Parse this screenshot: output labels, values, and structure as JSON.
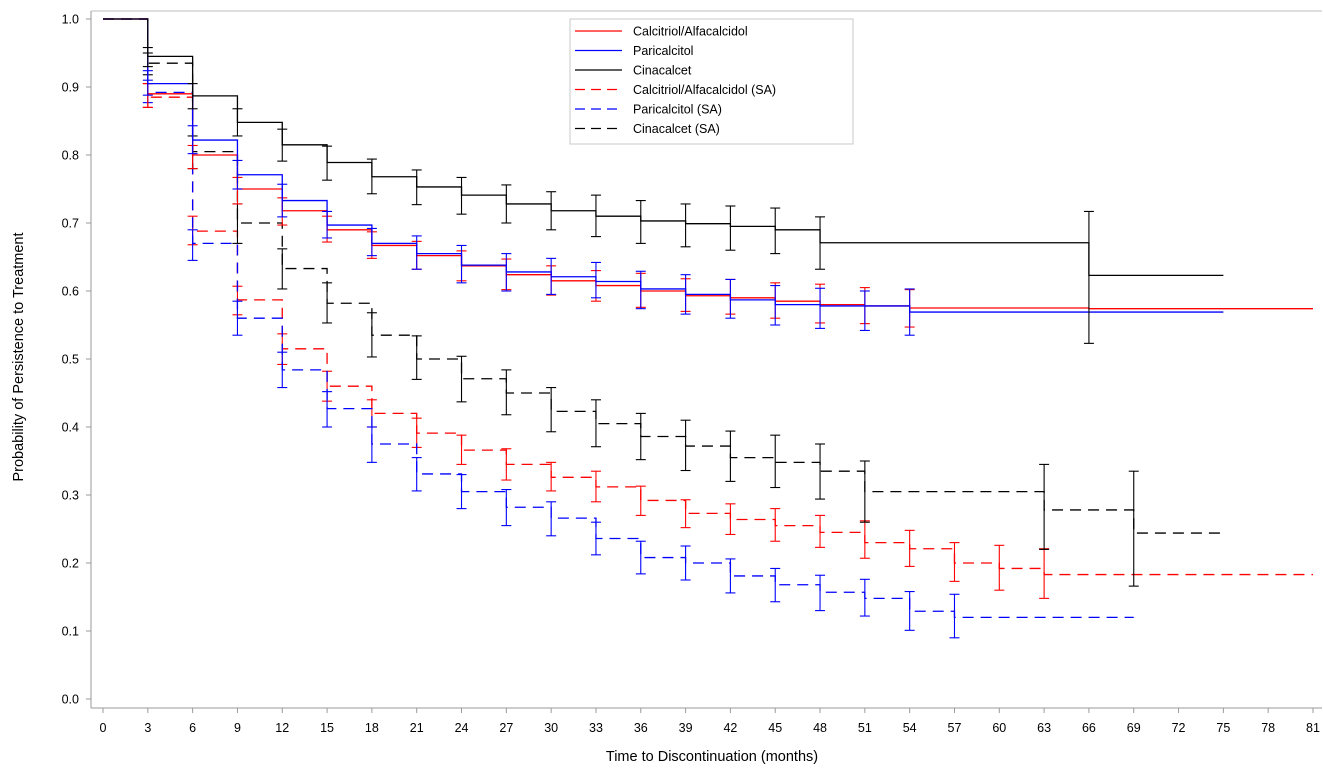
{
  "chart_data": {
    "type": "line",
    "subtype": "kaplan-meier-step",
    "xlabel": "Time to Discontinuation (months)",
    "ylabel": "Probability of Persistence to Treatment",
    "xlim": [
      0,
      81
    ],
    "ylim": [
      0.0,
      1.0
    ],
    "xticks": [
      0,
      3,
      6,
      9,
      12,
      15,
      18,
      21,
      24,
      27,
      30,
      33,
      36,
      39,
      42,
      45,
      48,
      51,
      54,
      57,
      60,
      63,
      66,
      69,
      72,
      75,
      78,
      81
    ],
    "xtick_labels": [
      "0",
      "3",
      "6",
      "9",
      "12",
      "15",
      "18",
      "21",
      "24",
      "27",
      "30",
      "33",
      "36",
      "39",
      "42",
      "45",
      "48",
      "51",
      "54",
      "57",
      "60",
      "63",
      "66",
      "69",
      "72",
      "75",
      "78",
      "81"
    ],
    "yticks": [
      0.0,
      0.1,
      0.2,
      0.3,
      0.4,
      0.5,
      0.6,
      0.7,
      0.8,
      0.9,
      1.0
    ],
    "ytick_labels": [
      "0.0",
      "0.1",
      "0.2",
      "0.3",
      "0.4",
      "0.5",
      "0.6",
      "0.7",
      "0.8",
      "0.9",
      "1.0"
    ],
    "grid": false,
    "legend_position": "top-center",
    "series": [
      {
        "name": "Calcitriol/Alfacalcidol",
        "color": "#ff0000",
        "dash": "solid",
        "x": [
          0,
          3,
          6,
          9,
          12,
          15,
          18,
          21,
          24,
          27,
          30,
          33,
          36,
          39,
          42,
          45,
          48,
          51,
          54,
          57,
          60,
          63,
          66,
          69,
          72,
          75,
          78,
          81
        ],
        "y": [
          1.0,
          0.89,
          0.8,
          0.75,
          0.718,
          0.69,
          0.667,
          0.652,
          0.637,
          0.624,
          0.615,
          0.608,
          0.6,
          0.593,
          0.59,
          0.585,
          0.58,
          0.578,
          0.575,
          0.575,
          0.575,
          0.575,
          0.574,
          0.574,
          0.574,
          0.574,
          0.574,
          0.574
        ],
        "ci_at": [
          3,
          6,
          9,
          12,
          15,
          18,
          21,
          24,
          27,
          30,
          33,
          36,
          39,
          42,
          45,
          48,
          51,
          54
        ],
        "ci_low": [
          0.87,
          0.78,
          0.728,
          0.697,
          0.672,
          0.648,
          0.632,
          0.615,
          0.602,
          0.594,
          0.585,
          0.576,
          0.57,
          0.566,
          0.56,
          0.553,
          0.552,
          0.547
        ],
        "ci_high": [
          0.905,
          0.814,
          0.767,
          0.737,
          0.71,
          0.687,
          0.673,
          0.659,
          0.647,
          0.637,
          0.63,
          0.626,
          0.618,
          0.617,
          0.612,
          0.61,
          0.605,
          0.602
        ]
      },
      {
        "name": "Paricalcitol",
        "color": "#0000ff",
        "dash": "solid",
        "x": [
          0,
          3,
          6,
          9,
          12,
          15,
          18,
          21,
          24,
          27,
          30,
          33,
          36,
          39,
          42,
          45,
          48,
          51,
          54,
          57,
          60,
          63,
          66,
          69,
          72,
          75
        ],
        "y": [
          1.0,
          0.905,
          0.822,
          0.771,
          0.733,
          0.697,
          0.67,
          0.655,
          0.638,
          0.628,
          0.621,
          0.614,
          0.603,
          0.595,
          0.587,
          0.58,
          0.578,
          0.578,
          0.569,
          0.569,
          0.569,
          0.569,
          0.569,
          0.569,
          0.569,
          0.569
        ],
        "ci_at": [
          3,
          6,
          9,
          12,
          15,
          18,
          21,
          24,
          27,
          30,
          33,
          36,
          39,
          42,
          45,
          48,
          51,
          54
        ],
        "ci_low": [
          0.888,
          0.802,
          0.75,
          0.709,
          0.678,
          0.652,
          0.632,
          0.612,
          0.6,
          0.595,
          0.59,
          0.574,
          0.566,
          0.56,
          0.55,
          0.545,
          0.542,
          0.535
        ],
        "ci_high": [
          0.924,
          0.843,
          0.792,
          0.757,
          0.717,
          0.692,
          0.681,
          0.667,
          0.655,
          0.648,
          0.642,
          0.629,
          0.624,
          0.617,
          0.608,
          0.604,
          0.6,
          0.603
        ]
      },
      {
        "name": "Cinacalcet",
        "color": "#000000",
        "dash": "solid",
        "x": [
          0,
          3,
          6,
          9,
          12,
          15,
          18,
          21,
          24,
          27,
          30,
          33,
          36,
          39,
          42,
          45,
          48,
          51,
          54,
          57,
          60,
          63,
          66,
          69,
          72,
          75
        ],
        "y": [
          1.0,
          0.945,
          0.887,
          0.848,
          0.815,
          0.789,
          0.768,
          0.753,
          0.741,
          0.728,
          0.718,
          0.71,
          0.703,
          0.699,
          0.695,
          0.69,
          0.671,
          0.671,
          0.671,
          0.671,
          0.671,
          0.671,
          0.623,
          0.623,
          0.623,
          0.623
        ],
        "ci_at": [
          3,
          6,
          9,
          12,
          15,
          18,
          21,
          24,
          27,
          30,
          33,
          36,
          39,
          42,
          45,
          48,
          66
        ],
        "ci_low": [
          0.93,
          0.868,
          0.828,
          0.791,
          0.763,
          0.743,
          0.727,
          0.713,
          0.7,
          0.69,
          0.68,
          0.67,
          0.665,
          0.66,
          0.655,
          0.632,
          0.523
        ],
        "ci_high": [
          0.958,
          0.905,
          0.868,
          0.838,
          0.813,
          0.794,
          0.778,
          0.767,
          0.756,
          0.746,
          0.741,
          0.733,
          0.728,
          0.725,
          0.722,
          0.709,
          0.717
        ]
      },
      {
        "name": "Calcitriol/Alfacalcidol (SA)",
        "color": "#ff0000",
        "dash": "dashed",
        "x": [
          0,
          3,
          6,
          9,
          12,
          15,
          18,
          21,
          24,
          27,
          30,
          33,
          36,
          39,
          42,
          45,
          48,
          51,
          54,
          57,
          60,
          63,
          66,
          69,
          72,
          75,
          78,
          81
        ],
        "y": [
          1.0,
          0.885,
          0.688,
          0.587,
          0.515,
          0.46,
          0.42,
          0.391,
          0.366,
          0.345,
          0.326,
          0.312,
          0.292,
          0.273,
          0.264,
          0.255,
          0.245,
          0.23,
          0.221,
          0.2,
          0.192,
          0.183,
          0.183,
          0.183,
          0.183,
          0.183,
          0.183,
          0.183
        ],
        "ci_at": [
          3,
          6,
          9,
          12,
          15,
          18,
          21,
          24,
          27,
          30,
          33,
          36,
          39,
          42,
          45,
          48,
          51,
          54,
          57,
          60,
          63
        ],
        "ci_low": [
          0.87,
          0.668,
          0.565,
          0.492,
          0.438,
          0.4,
          0.37,
          0.345,
          0.322,
          0.306,
          0.29,
          0.27,
          0.252,
          0.242,
          0.232,
          0.223,
          0.207,
          0.195,
          0.173,
          0.16,
          0.148
        ],
        "ci_high": [
          0.905,
          0.71,
          0.607,
          0.537,
          0.482,
          0.44,
          0.413,
          0.388,
          0.368,
          0.348,
          0.335,
          0.313,
          0.293,
          0.287,
          0.28,
          0.27,
          0.262,
          0.248,
          0.23,
          0.226,
          0.221
        ]
      },
      {
        "name": "Paricalcitol (SA)",
        "color": "#0000ff",
        "dash": "dashed",
        "x": [
          0,
          3,
          6,
          9,
          12,
          15,
          18,
          21,
          24,
          27,
          30,
          33,
          36,
          39,
          42,
          45,
          48,
          51,
          54,
          57,
          60,
          63,
          66,
          69
        ],
        "y": [
          1.0,
          0.892,
          0.67,
          0.56,
          0.484,
          0.427,
          0.375,
          0.331,
          0.305,
          0.282,
          0.266,
          0.236,
          0.208,
          0.2,
          0.181,
          0.168,
          0.157,
          0.148,
          0.129,
          0.12,
          0.12,
          0.12,
          0.12,
          0.12
        ],
        "ci_at": [
          3,
          6,
          9,
          12,
          15,
          18,
          21,
          24,
          27,
          30,
          33,
          36,
          39,
          42,
          45,
          48,
          51,
          54,
          57
        ],
        "ci_low": [
          0.877,
          0.645,
          0.535,
          0.458,
          0.4,
          0.348,
          0.306,
          0.28,
          0.255,
          0.24,
          0.212,
          0.184,
          0.175,
          0.156,
          0.143,
          0.13,
          0.122,
          0.101,
          0.09
        ],
        "ci_high": [
          0.91,
          0.69,
          0.585,
          0.51,
          0.452,
          0.4,
          0.355,
          0.33,
          0.308,
          0.29,
          0.26,
          0.232,
          0.225,
          0.206,
          0.192,
          0.182,
          0.176,
          0.158,
          0.154
        ]
      },
      {
        "name": "Cinacalcet (SA)",
        "color": "#000000",
        "dash": "dashed",
        "x": [
          0,
          3,
          6,
          9,
          12,
          15,
          18,
          21,
          24,
          27,
          30,
          33,
          36,
          39,
          42,
          45,
          48,
          51,
          54,
          57,
          60,
          63,
          66,
          69,
          72,
          75
        ],
        "y": [
          1.0,
          0.935,
          0.805,
          0.7,
          0.633,
          0.582,
          0.535,
          0.5,
          0.471,
          0.45,
          0.423,
          0.405,
          0.386,
          0.372,
          0.355,
          0.348,
          0.335,
          0.305,
          0.305,
          0.305,
          0.305,
          0.278,
          0.278,
          0.244,
          0.244,
          0.244
        ],
        "ci_at": [
          3,
          6,
          9,
          12,
          15,
          18,
          21,
          24,
          27,
          30,
          33,
          36,
          39,
          42,
          45,
          48,
          51,
          63,
          69
        ],
        "ci_low": [
          0.918,
          0.78,
          0.67,
          0.603,
          0.553,
          0.503,
          0.47,
          0.437,
          0.418,
          0.393,
          0.371,
          0.352,
          0.336,
          0.32,
          0.311,
          0.294,
          0.26,
          0.22,
          0.166
        ],
        "ci_high": [
          0.95,
          0.828,
          0.728,
          0.662,
          0.612,
          0.568,
          0.534,
          0.504,
          0.484,
          0.458,
          0.44,
          0.42,
          0.41,
          0.394,
          0.388,
          0.375,
          0.35,
          0.345,
          0.335
        ]
      }
    ]
  }
}
